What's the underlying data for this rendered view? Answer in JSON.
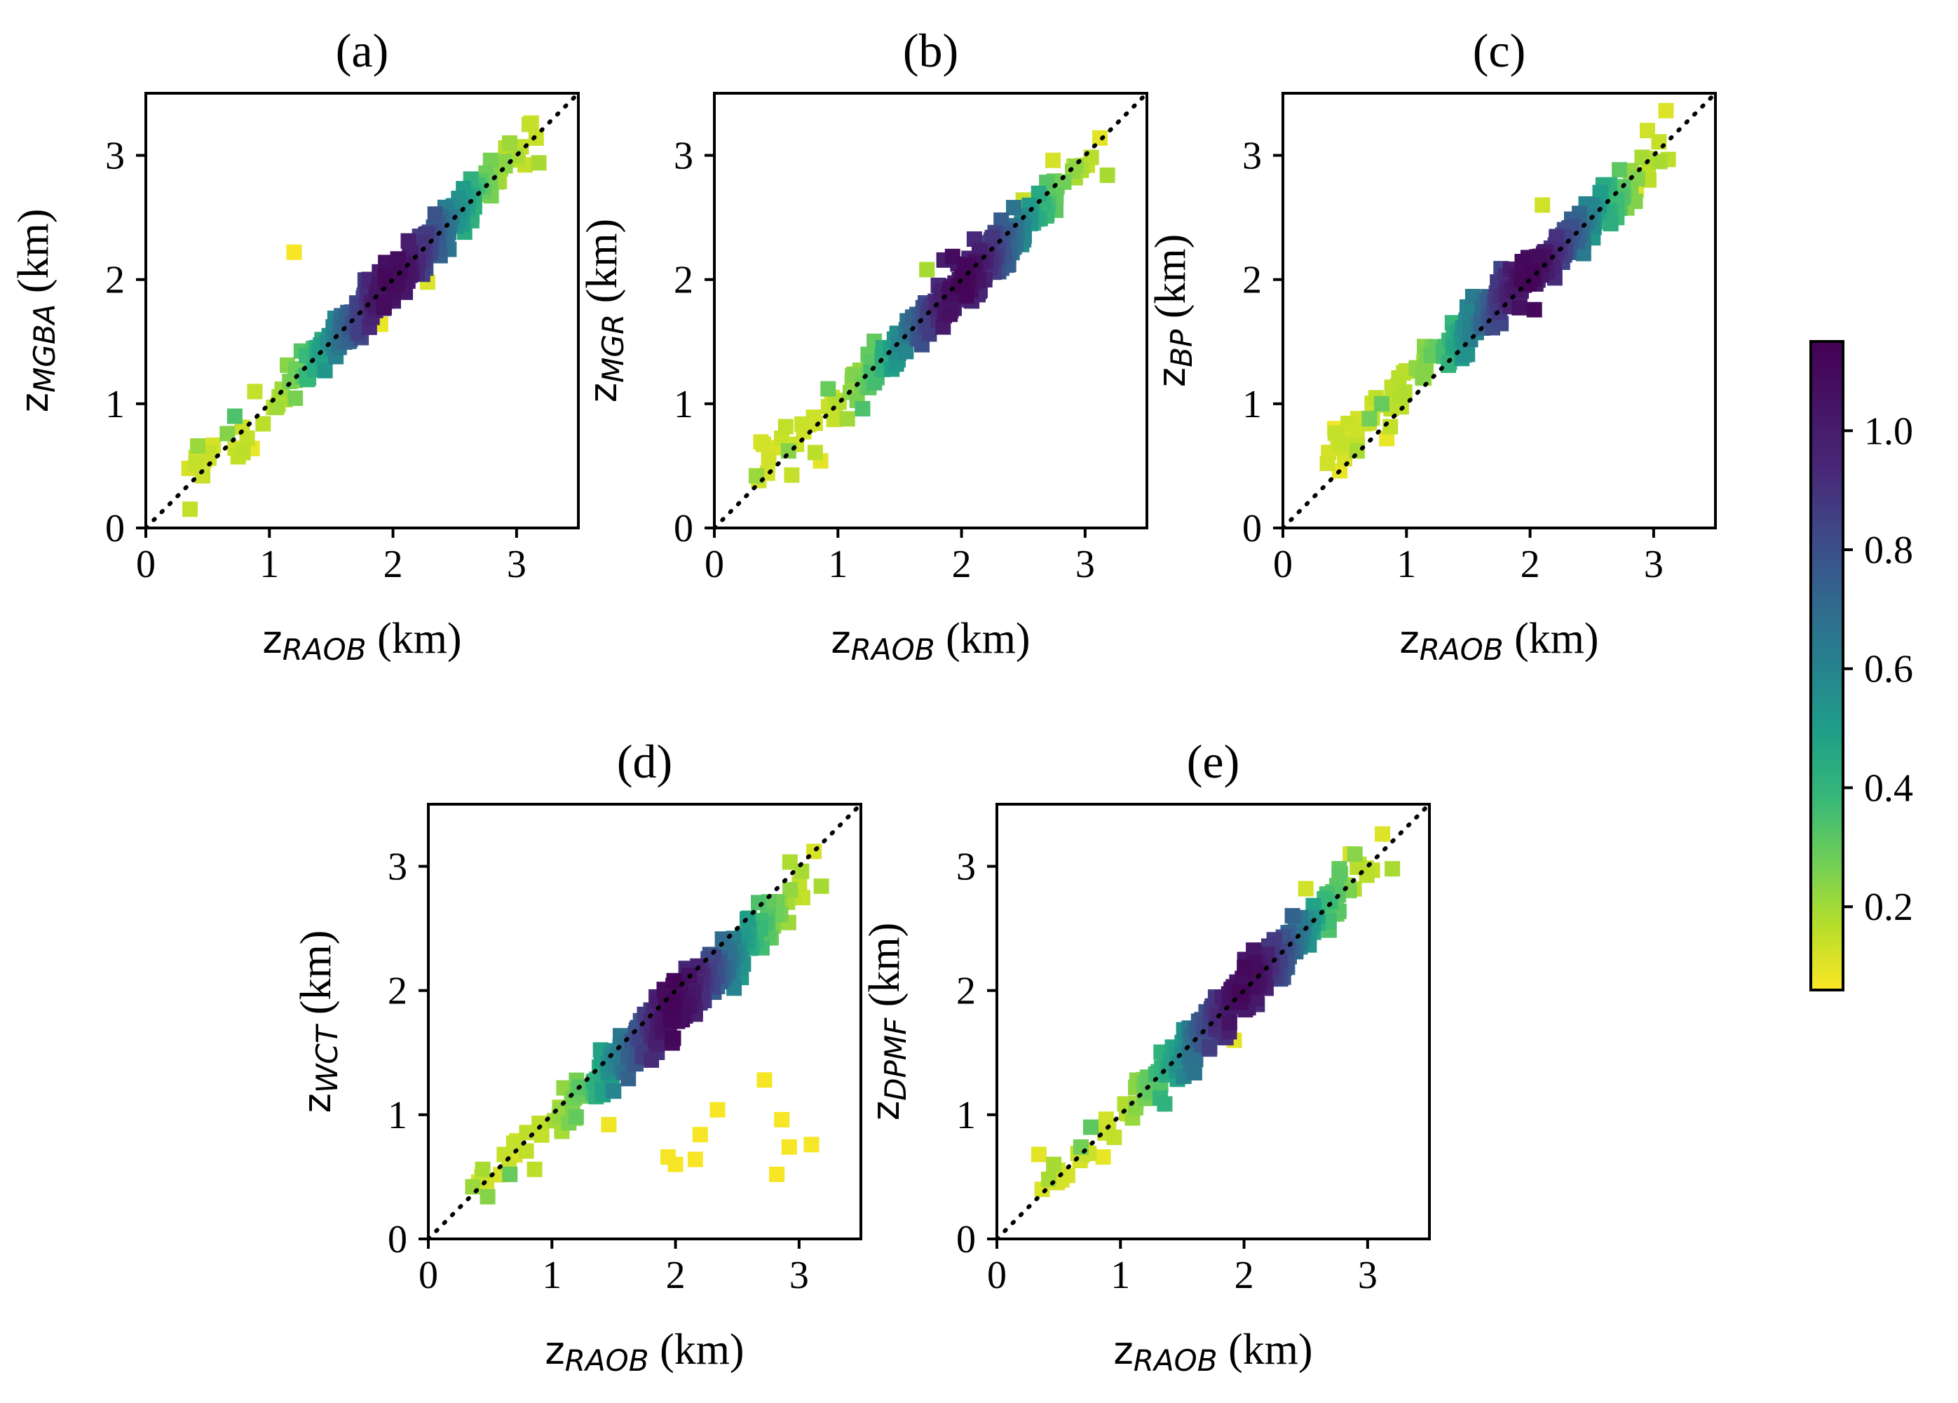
{
  "figure": {
    "colorbar": {
      "colormap": "viridis",
      "range": [
        0.06,
        1.15
      ],
      "ticks": [
        "0.2",
        "0.4",
        "0.6",
        "0.8",
        "1.0"
      ],
      "tick_values": [
        0.2,
        0.4,
        0.6,
        0.8,
        1.0
      ]
    }
  },
  "chart_data": [
    {
      "type": "scatter",
      "title": "(a)",
      "xlabel": {
        "var": "z",
        "sub": "RAOB",
        "unit": " (km)"
      },
      "ylabel": {
        "var": "z",
        "sub": "MGBA",
        "unit": " (km)"
      },
      "xlim": [
        0,
        3.5
      ],
      "ylim": [
        0,
        3.5
      ],
      "xticks": [
        0,
        1,
        2,
        3
      ],
      "yticks": [
        0,
        1,
        2,
        3
      ],
      "reference_line": "1:1 dotted",
      "marker": "square",
      "cluster": {
        "x_from": 0.35,
        "x_to": 3.2,
        "slope": 1.0,
        "offset": 0.0,
        "spread": 0.09,
        "n": 360
      },
      "points": [
        [
          0.35,
          0.48,
          0.18
        ],
        [
          0.42,
          0.66,
          0.32
        ],
        [
          0.46,
          0.42,
          0.22
        ],
        [
          0.66,
          0.76,
          0.35
        ],
        [
          0.72,
          0.9,
          0.45
        ],
        [
          0.86,
          0.64,
          0.12
        ],
        [
          1.2,
          2.22,
          0.08
        ],
        [
          1.9,
          1.64,
          0.12
        ],
        [
          2.28,
          1.98,
          0.16
        ],
        [
          2.96,
          3.0,
          0.2
        ],
        [
          3.12,
          3.26,
          0.18
        ],
        [
          3.18,
          2.94,
          0.3
        ]
      ]
    },
    {
      "type": "scatter",
      "title": "(b)",
      "xlabel": {
        "var": "z",
        "sub": "RAOB",
        "unit": " (km)"
      },
      "ylabel": {
        "var": "z",
        "sub": "MGR",
        "unit": " (km)"
      },
      "xlim": [
        0,
        3.5
      ],
      "ylim": [
        0,
        3.5
      ],
      "xticks": [
        0,
        1,
        2,
        3
      ],
      "yticks": [
        0,
        1,
        2,
        3
      ],
      "reference_line": "1:1 dotted",
      "marker": "square",
      "cluster": {
        "x_from": 0.35,
        "x_to": 3.2,
        "slope": 0.95,
        "offset": 0.06,
        "spread": 0.09,
        "n": 360
      },
      "points": [
        [
          0.34,
          0.42,
          0.32
        ],
        [
          0.44,
          0.56,
          0.2
        ],
        [
          0.6,
          0.62,
          0.35
        ],
        [
          0.86,
          0.54,
          0.14
        ],
        [
          0.92,
          1.12,
          0.4
        ],
        [
          1.2,
          0.96,
          0.45
        ],
        [
          1.72,
          2.08,
          0.3
        ],
        [
          2.5,
          2.64,
          0.22
        ],
        [
          2.92,
          2.82,
          0.3
        ],
        [
          3.12,
          3.14,
          0.14
        ],
        [
          3.18,
          2.84,
          0.3
        ],
        [
          2.74,
          2.96,
          0.18
        ]
      ]
    },
    {
      "type": "scatter",
      "title": "(c)",
      "xlabel": {
        "var": "z",
        "sub": "RAOB",
        "unit": " (km)"
      },
      "ylabel": {
        "var": "z",
        "sub": "BP",
        "unit": " (km)"
      },
      "xlim": [
        0,
        3.5
      ],
      "ylim": [
        0,
        3.5
      ],
      "xticks": [
        0,
        1,
        2,
        3
      ],
      "yticks": [
        0,
        1,
        2,
        3
      ],
      "reference_line": "1:1 dotted",
      "marker": "square",
      "cluster": {
        "x_from": 0.35,
        "x_to": 3.2,
        "slope": 0.88,
        "offset": 0.28,
        "spread": 0.09,
        "n": 360
      },
      "points": [
        [
          0.36,
          0.52,
          0.2
        ],
        [
          0.42,
          0.8,
          0.1
        ],
        [
          0.46,
          0.46,
          0.12
        ],
        [
          0.6,
          0.62,
          0.3
        ],
        [
          0.7,
          0.88,
          0.38
        ],
        [
          0.84,
          0.72,
          0.12
        ],
        [
          0.8,
          1.0,
          0.4
        ],
        [
          2.1,
          2.6,
          0.2
        ],
        [
          2.86,
          2.72,
          0.16
        ],
        [
          2.95,
          3.2,
          0.2
        ],
        [
          3.1,
          3.36,
          0.16
        ],
        [
          3.05,
          2.95,
          0.3
        ]
      ]
    },
    {
      "type": "scatter",
      "title": "(d)",
      "xlabel": {
        "var": "z",
        "sub": "RAOB",
        "unit": " (km)"
      },
      "ylabel": {
        "var": "z",
        "sub": "WCT",
        "unit": " (km)"
      },
      "xlim": [
        0,
        3.5
      ],
      "ylim": [
        0,
        3.5
      ],
      "xticks": [
        0,
        1,
        2,
        3
      ],
      "yticks": [
        0,
        1,
        2,
        3
      ],
      "reference_line": "1:1 dotted",
      "marker": "square",
      "cluster": {
        "x_from": 0.35,
        "x_to": 3.2,
        "slope": 0.92,
        "offset": 0.02,
        "spread": 0.1,
        "n": 360
      },
      "points": [
        [
          0.36,
          0.42,
          0.32
        ],
        [
          0.44,
          0.56,
          0.3
        ],
        [
          0.48,
          0.34,
          0.35
        ],
        [
          0.66,
          0.52,
          0.4
        ],
        [
          0.86,
          0.56,
          0.25
        ],
        [
          1.46,
          0.92,
          0.1
        ],
        [
          1.94,
          0.66,
          0.08
        ],
        [
          2.0,
          0.6,
          0.08
        ],
        [
          2.16,
          0.64,
          0.08
        ],
        [
          2.2,
          0.84,
          0.08
        ],
        [
          2.34,
          1.04,
          0.08
        ],
        [
          2.72,
          1.28,
          0.08
        ],
        [
          2.82,
          0.52,
          0.08
        ],
        [
          2.86,
          0.96,
          0.08
        ],
        [
          2.92,
          0.74,
          0.08
        ],
        [
          3.1,
          0.76,
          0.08
        ],
        [
          3.02,
          2.96,
          0.3
        ],
        [
          3.12,
          3.12,
          0.18
        ],
        [
          3.18,
          2.84,
          0.3
        ]
      ]
    },
    {
      "type": "scatter",
      "title": "(e)",
      "xlabel": {
        "var": "z",
        "sub": "RAOB",
        "unit": " (km)"
      },
      "ylabel": {
        "var": "z",
        "sub": "DPMF",
        "unit": " (km)"
      },
      "xlim": [
        0,
        3.5
      ],
      "ylim": [
        0,
        3.5
      ],
      "xticks": [
        0,
        1,
        2,
        3
      ],
      "yticks": [
        0,
        1,
        2,
        3
      ],
      "reference_line": "1:1 dotted",
      "marker": "square",
      "cluster": {
        "x_from": 0.35,
        "x_to": 3.2,
        "slope": 1.0,
        "offset": 0.0,
        "spread": 0.09,
        "n": 360
      },
      "points": [
        [
          0.34,
          0.68,
          0.14
        ],
        [
          0.42,
          0.48,
          0.3
        ],
        [
          0.46,
          0.6,
          0.3
        ],
        [
          0.68,
          0.74,
          0.38
        ],
        [
          0.76,
          0.9,
          0.42
        ],
        [
          0.86,
          0.66,
          0.12
        ],
        [
          1.96,
          1.98,
          0.14
        ],
        [
          1.92,
          1.6,
          0.14
        ],
        [
          2.86,
          3.1,
          0.18
        ],
        [
          3.12,
          3.26,
          0.16
        ],
        [
          3.2,
          2.98,
          0.3
        ],
        [
          2.5,
          2.82,
          0.2
        ]
      ]
    }
  ]
}
